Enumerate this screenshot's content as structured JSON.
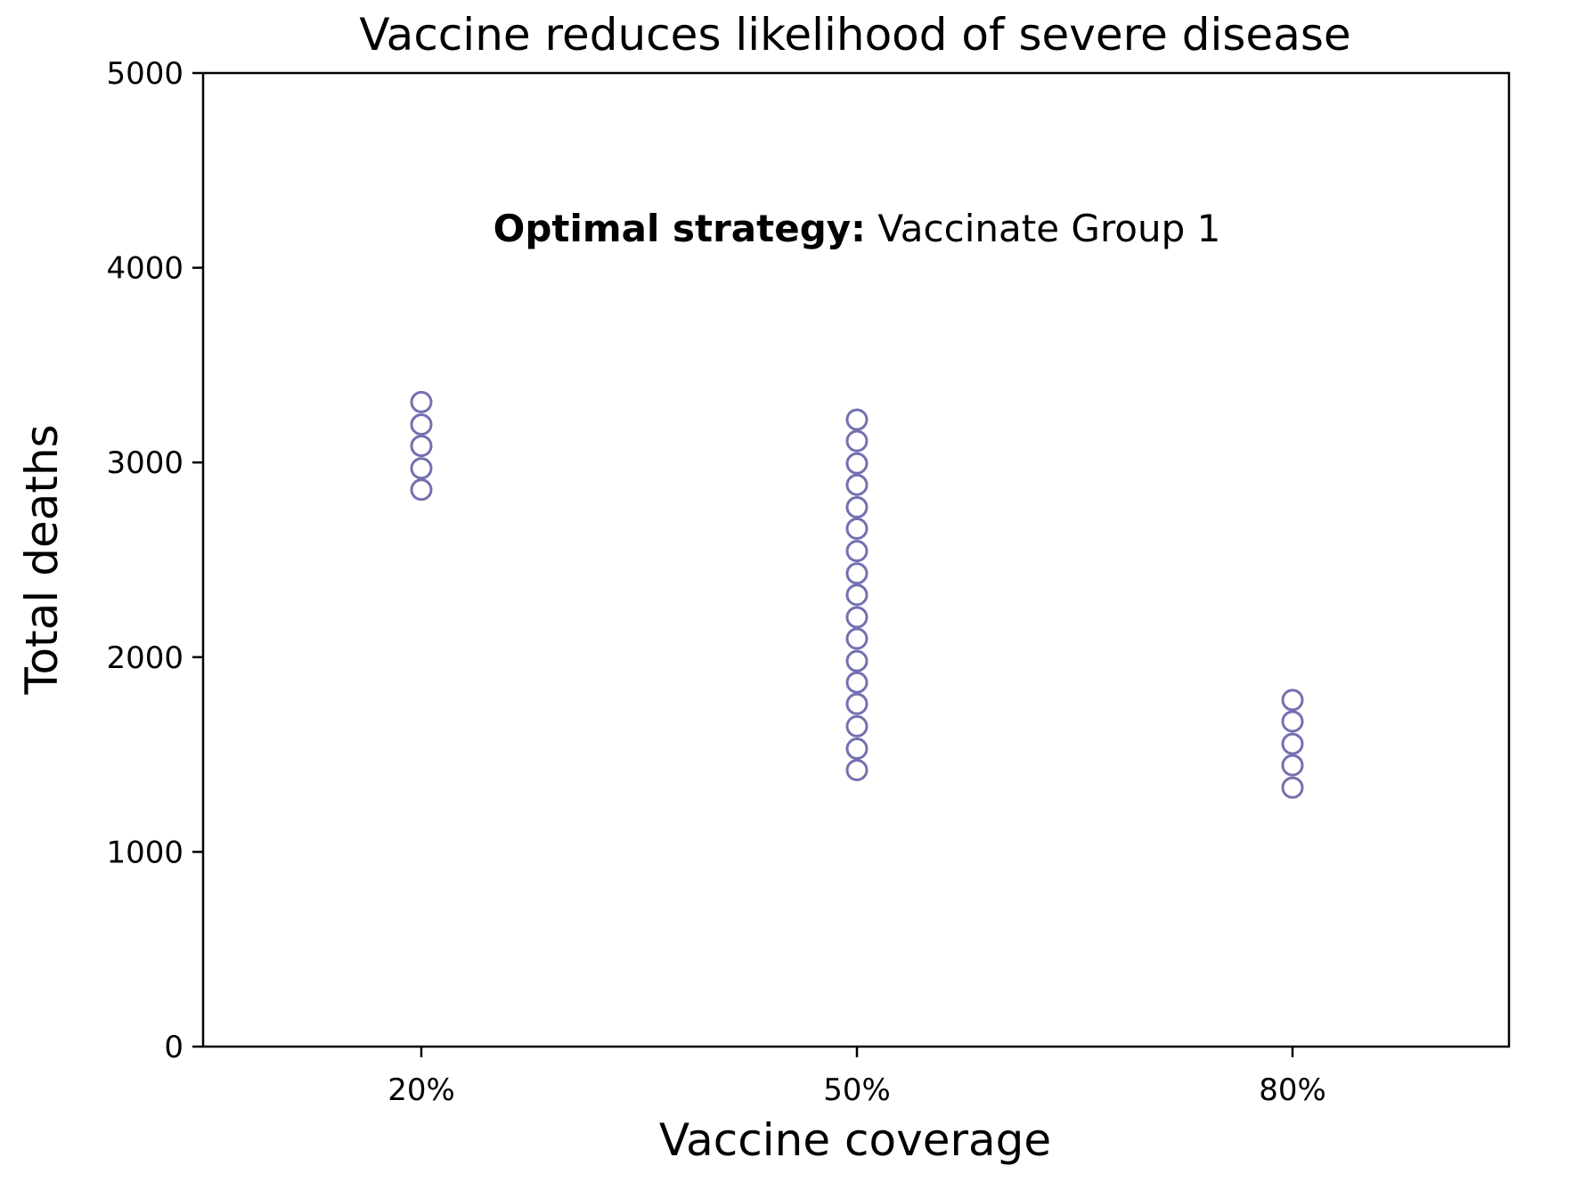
{
  "chart_data": {
    "type": "scatter",
    "title": "Vaccine reduces likelihood of severe disease",
    "xlabel": "Vaccine coverage",
    "ylabel": "Total deaths",
    "categories": [
      "20%",
      "50%",
      "80%"
    ],
    "ylim": [
      0,
      5000
    ],
    "yticks": [
      0,
      1000,
      2000,
      3000,
      4000,
      5000
    ],
    "grid": false,
    "marker": "hollow-circle",
    "marker_color": "#7470b0",
    "annotation": {
      "bold": "Optimal strategy:",
      "normal": " Vaccinate Group 1",
      "x_category": "50%",
      "y": 4200
    },
    "series": [
      {
        "points": [
          {
            "x": "20%",
            "y": 2860
          },
          {
            "x": "20%",
            "y": 2970
          },
          {
            "x": "20%",
            "y": 3085
          },
          {
            "x": "20%",
            "y": 3195
          },
          {
            "x": "20%",
            "y": 3310
          },
          {
            "x": "50%",
            "y": 1420
          },
          {
            "x": "50%",
            "y": 1530
          },
          {
            "x": "50%",
            "y": 1645
          },
          {
            "x": "50%",
            "y": 1760
          },
          {
            "x": "50%",
            "y": 1870
          },
          {
            "x": "50%",
            "y": 1980
          },
          {
            "x": "50%",
            "y": 2095
          },
          {
            "x": "50%",
            "y": 2205
          },
          {
            "x": "50%",
            "y": 2320
          },
          {
            "x": "50%",
            "y": 2430
          },
          {
            "x": "50%",
            "y": 2545
          },
          {
            "x": "50%",
            "y": 2660
          },
          {
            "x": "50%",
            "y": 2770
          },
          {
            "x": "50%",
            "y": 2885
          },
          {
            "x": "50%",
            "y": 2995
          },
          {
            "x": "50%",
            "y": 3110
          },
          {
            "x": "50%",
            "y": 3220
          },
          {
            "x": "80%",
            "y": 1330
          },
          {
            "x": "80%",
            "y": 1445
          },
          {
            "x": "80%",
            "y": 1555
          },
          {
            "x": "80%",
            "y": 1670
          },
          {
            "x": "80%",
            "y": 1780
          }
        ]
      }
    ]
  }
}
